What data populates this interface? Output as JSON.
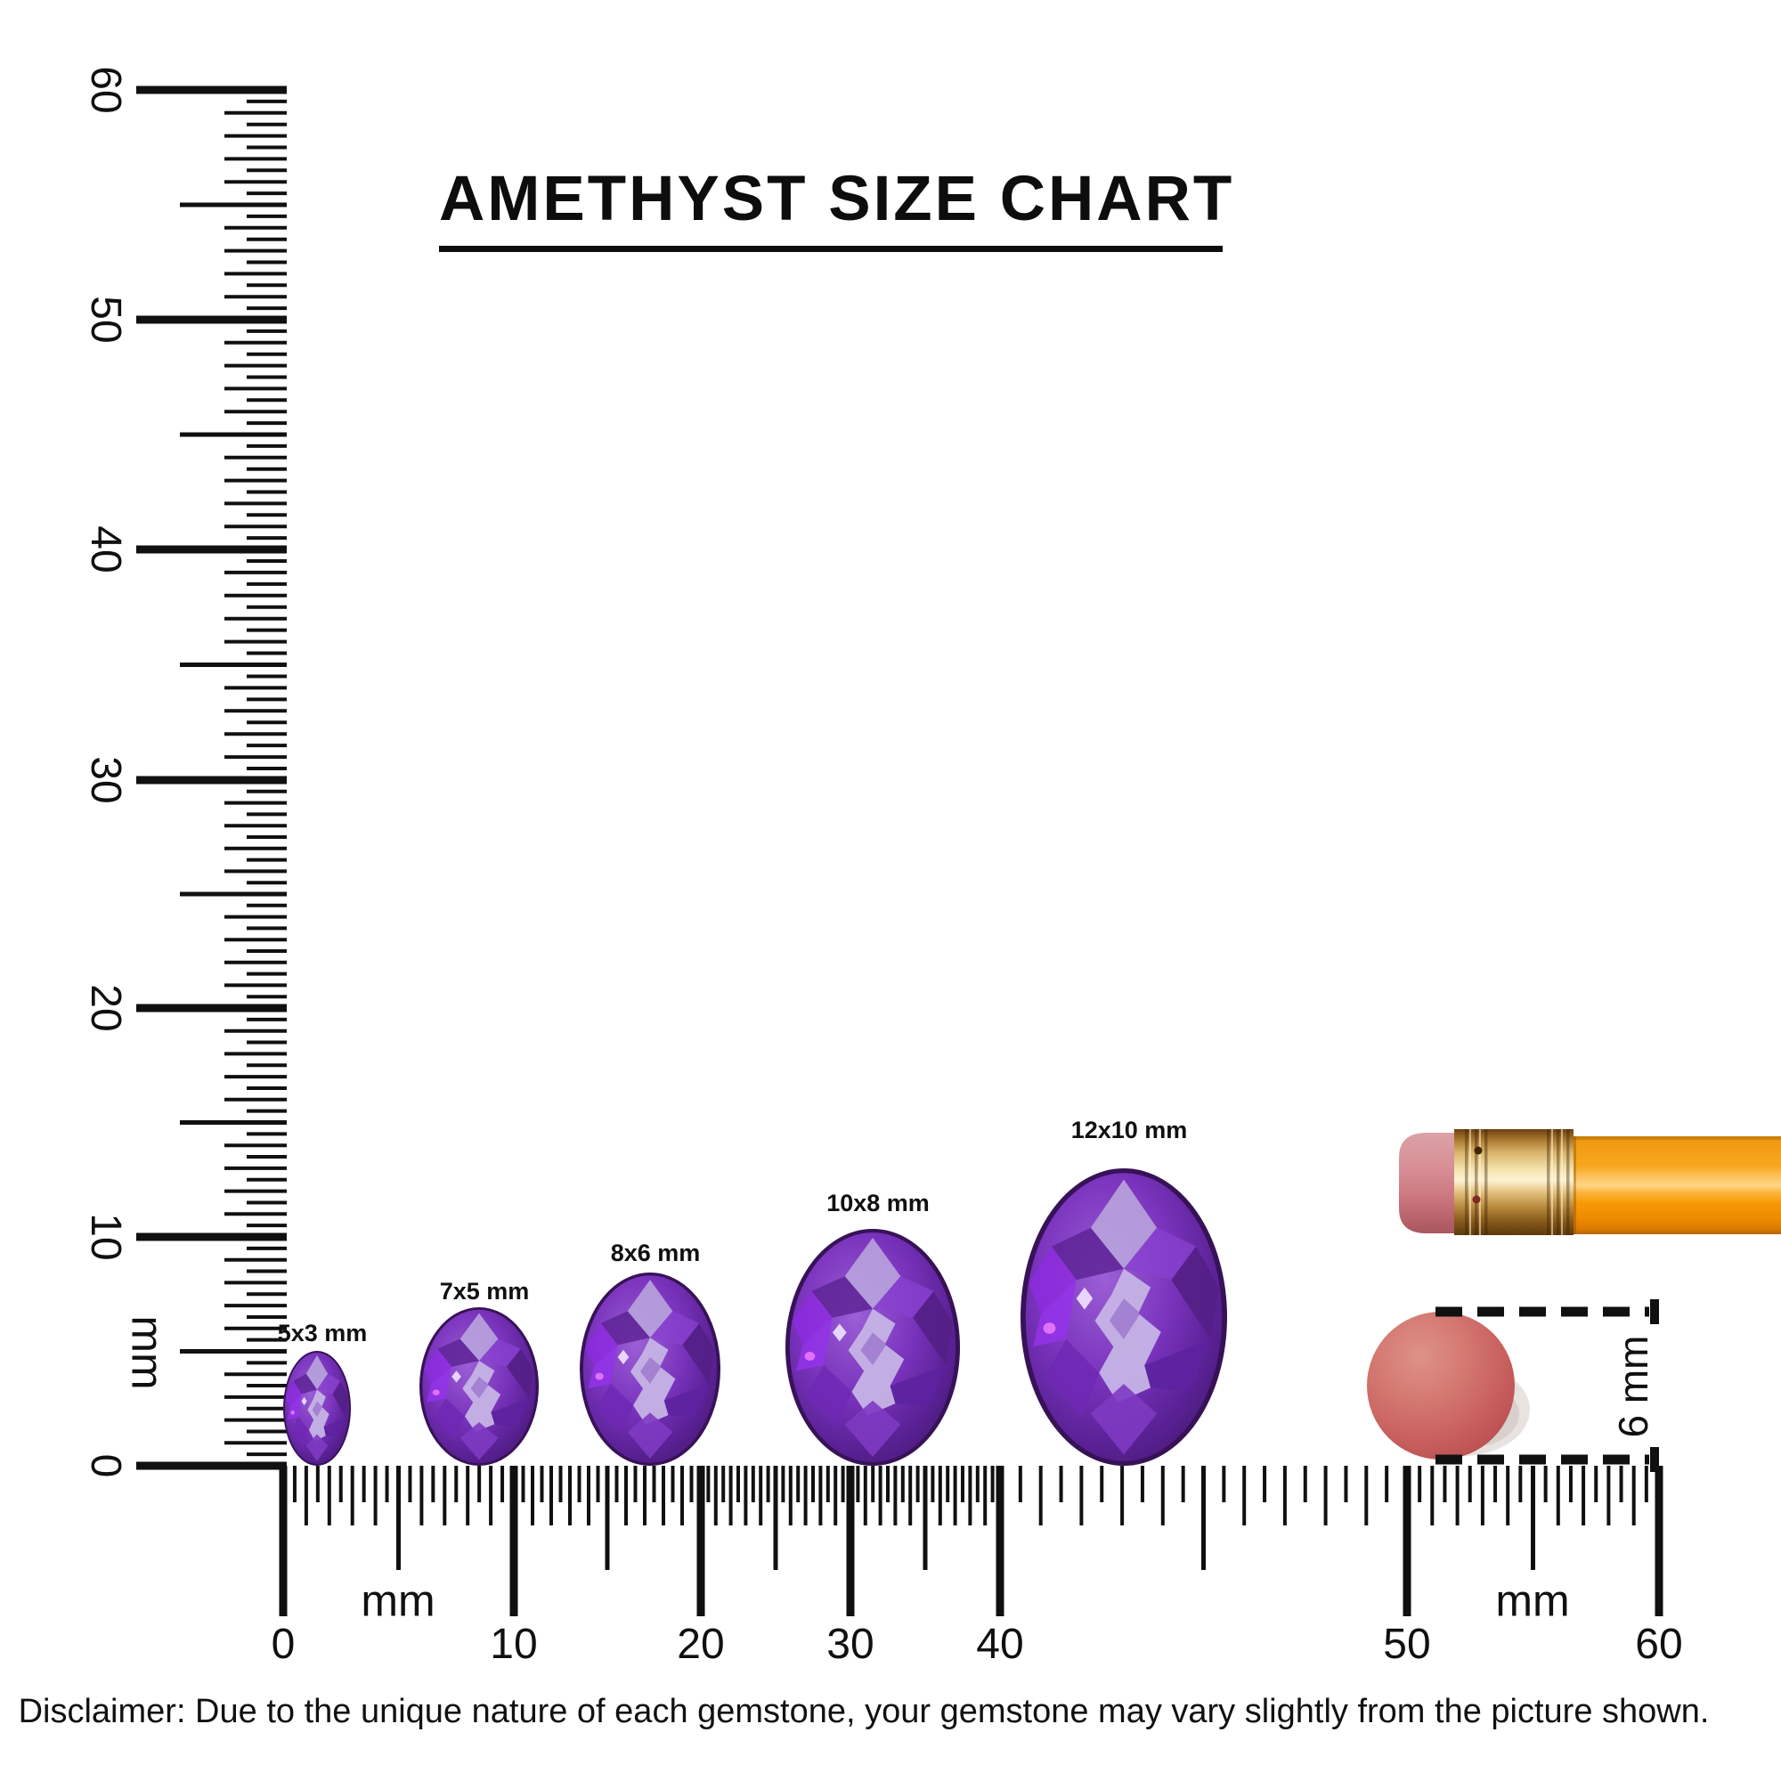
{
  "title": "AMETHYST SIZE CHART",
  "rulers": {
    "unit": "mm",
    "vertical": {
      "tick_labels": [
        "60",
        "50",
        "40",
        "30",
        "20",
        "10",
        "0"
      ],
      "unit_label": "mm"
    },
    "horizontal": {
      "tick_labels": [
        "0",
        "10",
        "20",
        "30",
        "40",
        "50",
        "60"
      ],
      "unit_labels": [
        "mm",
        "mm"
      ]
    }
  },
  "gems": [
    {
      "label": "5x3 mm",
      "length_mm": 5,
      "width_mm": 3
    },
    {
      "label": "7x5 mm",
      "length_mm": 7,
      "width_mm": 5
    },
    {
      "label": "8x6 mm",
      "length_mm": 8,
      "width_mm": 6
    },
    {
      "label": "10x8 mm",
      "length_mm": 10,
      "width_mm": 8
    },
    {
      "label": "12x10 mm",
      "length_mm": 12,
      "width_mm": 10
    }
  ],
  "eraser_reference": {
    "label": "6 mm",
    "diameter_mm": 6
  },
  "disclaimer": "Disclaimer: Due to the unique nature of each gemstone, your gemstone may vary slightly from the picture shown.",
  "colors": {
    "tick": "#101010",
    "amethyst_dark": "#44186f",
    "amethyst_primary": "#7a33bd",
    "amethyst_light": "#c6b4e6",
    "eraser_disc": "#cd6363",
    "pencil_body": "#f7a71d",
    "pencil_ferrule": "#e9cd8f",
    "pencil_eraser": "#d5858c"
  }
}
